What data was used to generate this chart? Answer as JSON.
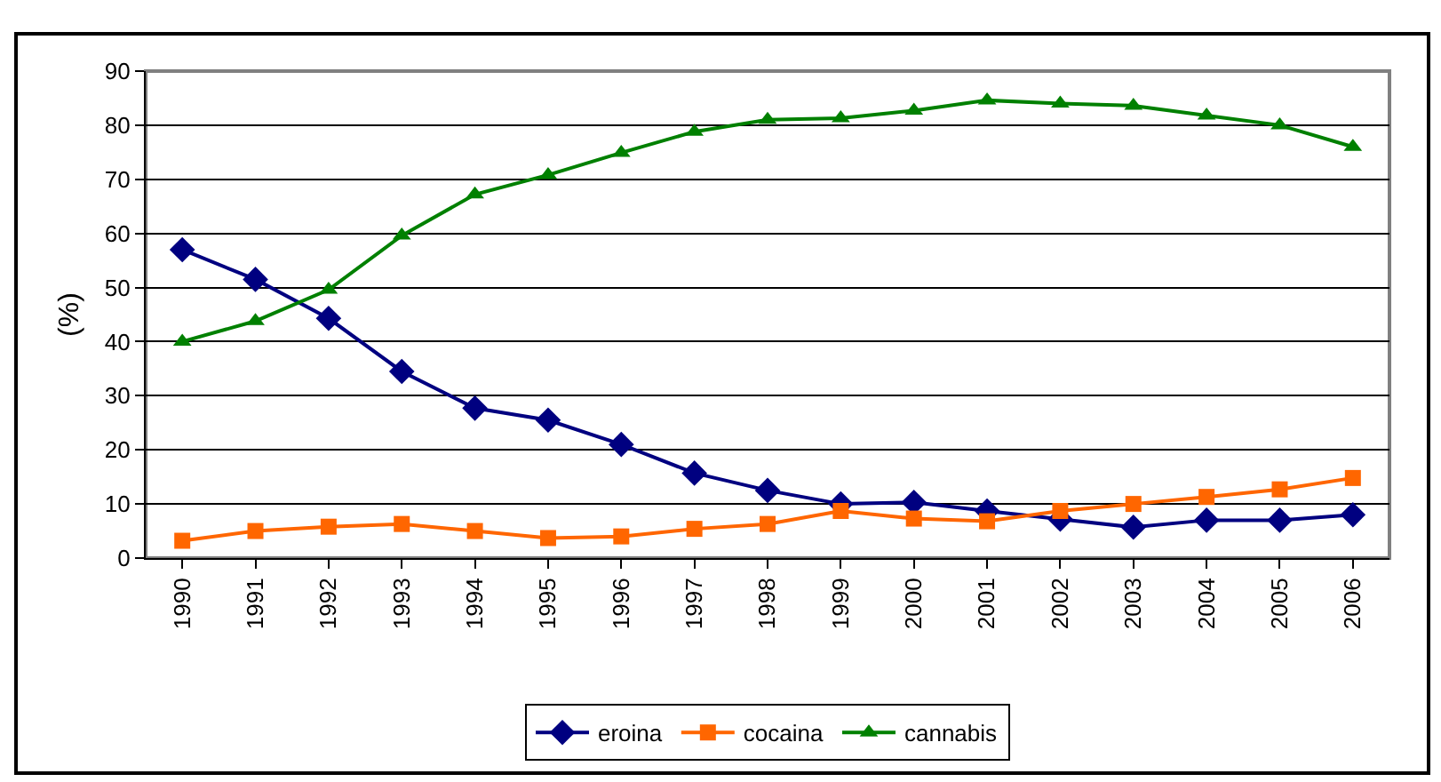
{
  "chart_data": {
    "type": "line",
    "ylabel": "(%)",
    "categories": [
      "1990",
      "1991",
      "1992",
      "1993",
      "1994",
      "1995",
      "1996",
      "1997",
      "1998",
      "1999",
      "2000",
      "2001",
      "2002",
      "2003",
      "2004",
      "2005",
      "2006"
    ],
    "series": [
      {
        "name": "eroina",
        "color": "#000080",
        "marker": "diamond",
        "values": [
          57,
          51.5,
          44.3,
          34.5,
          27.7,
          25.5,
          21,
          15.7,
          12.5,
          10,
          10.3,
          8.7,
          7.2,
          5.7,
          7,
          7,
          8
        ]
      },
      {
        "name": "cocaina",
        "color": "#ff6600",
        "marker": "square",
        "values": [
          3.2,
          5,
          5.8,
          6.3,
          5,
          3.7,
          4,
          5.4,
          6.3,
          8.7,
          7.3,
          6.8,
          8.7,
          10,
          11.3,
          12.7,
          14.8
        ]
      },
      {
        "name": "cannabis",
        "color": "#008000",
        "marker": "triangle",
        "values": [
          40,
          43.8,
          49.6,
          59.6,
          67.2,
          70.8,
          74.9,
          78.8,
          81,
          81.3,
          82.7,
          84.6,
          84,
          83.6,
          81.8,
          80,
          76
        ]
      }
    ],
    "ylim": [
      0,
      90
    ],
    "yticks": [
      0,
      10,
      20,
      30,
      40,
      50,
      60,
      70,
      80,
      90
    ],
    "grid": "y",
    "legend": "bottom"
  }
}
